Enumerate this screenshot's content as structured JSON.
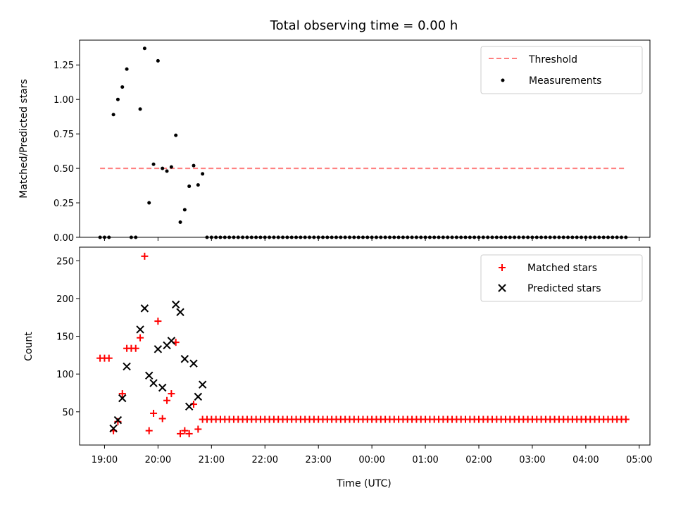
{
  "chart_data": [
    {
      "type": "scatter",
      "title": "Total observing time = 0.00 h",
      "ylabel": "Matched/Predicted stars",
      "xlabel": "",
      "xlim": [
        "18:32",
        "05:12"
      ],
      "ylim": [
        0,
        1.43
      ],
      "yticks": [
        "0.00",
        "0.25",
        "0.50",
        "0.75",
        "1.00",
        "1.25"
      ],
      "threshold": {
        "name": "Threshold",
        "value": 0.5,
        "x_start": "18:55",
        "x_end": "04:45",
        "color": "#ff7f7f"
      },
      "series": [
        {
          "name": "Measurements",
          "color": "#000000",
          "marker": "dot",
          "points": [
            [
              "18:55",
              0
            ],
            [
              "19:00",
              0
            ],
            [
              "19:05",
              0
            ],
            [
              "19:10",
              0.89
            ],
            [
              "19:15",
              1.0
            ],
            [
              "19:20",
              1.09
            ],
            [
              "19:25",
              1.22
            ],
            [
              "19:30",
              0
            ],
            [
              "19:35",
              0
            ],
            [
              "19:40",
              0.93
            ],
            [
              "19:45",
              1.37
            ],
            [
              "19:50",
              0.25
            ],
            [
              "19:55",
              0.53
            ],
            [
              "20:00",
              1.28
            ],
            [
              "20:05",
              0.5
            ],
            [
              "20:10",
              0.48
            ],
            [
              "20:15",
              0.51
            ],
            [
              "20:20",
              0.74
            ],
            [
              "20:25",
              0.11
            ],
            [
              "20:30",
              0.2
            ],
            [
              "20:35",
              0.37
            ],
            [
              "20:40",
              0.52
            ],
            [
              "20:45",
              0.38
            ],
            [
              "20:50",
              0.46
            ]
          ],
          "zero_from": "20:55",
          "zero_to": "04:45",
          "zero_step_minutes": 5
        }
      ],
      "legend": {
        "position": "top-right",
        "entries": [
          "Threshold",
          "Measurements"
        ]
      }
    },
    {
      "type": "scatter",
      "title": "",
      "ylabel": "Count",
      "xlabel": "Time (UTC)",
      "xlim": [
        "18:32",
        "05:12"
      ],
      "ylim": [
        6,
        268
      ],
      "yticks": [
        "50",
        "100",
        "150",
        "200",
        "250"
      ],
      "xticks": [
        "19:00",
        "20:00",
        "21:00",
        "22:00",
        "23:00",
        "00:00",
        "01:00",
        "02:00",
        "03:00",
        "04:00",
        "05:00"
      ],
      "series": [
        {
          "name": "Matched stars",
          "color": "#ff0000",
          "marker": "plus",
          "points": [
            [
              "18:55",
              121
            ],
            [
              "19:00",
              121
            ],
            [
              "19:05",
              121
            ],
            [
              "19:10",
              25
            ],
            [
              "19:15",
              37
            ],
            [
              "19:20",
              74
            ],
            [
              "19:25",
              134
            ],
            [
              "19:30",
              134
            ],
            [
              "19:35",
              134
            ],
            [
              "19:40",
              148
            ],
            [
              "19:45",
              256
            ],
            [
              "19:50",
              25
            ],
            [
              "19:55",
              48
            ],
            [
              "20:00",
              170
            ],
            [
              "20:05",
              41
            ],
            [
              "20:10",
              65
            ],
            [
              "20:15",
              74
            ],
            [
              "20:20",
              142
            ],
            [
              "20:25",
              21
            ],
            [
              "20:30",
              25
            ],
            [
              "20:35",
              21
            ],
            [
              "20:40",
              60
            ],
            [
              "20:45",
              27
            ]
          ],
          "constant_from": "20:50",
          "constant_to": "04:45",
          "constant_value": 40,
          "constant_step_minutes": 5
        },
        {
          "name": "Predicted stars",
          "color": "#000000",
          "marker": "x",
          "points": [
            [
              "19:10",
              28
            ],
            [
              "19:15",
              39
            ],
            [
              "19:20",
              68
            ],
            [
              "19:25",
              110
            ],
            [
              "19:40",
              159
            ],
            [
              "19:45",
              187
            ],
            [
              "19:50",
              98
            ],
            [
              "19:55",
              88
            ],
            [
              "20:00",
              133
            ],
            [
              "20:05",
              82
            ],
            [
              "20:10",
              138
            ],
            [
              "20:15",
              144
            ],
            [
              "20:20",
              192
            ],
            [
              "20:25",
              182
            ],
            [
              "20:30",
              120
            ],
            [
              "20:35",
              57
            ],
            [
              "20:40",
              114
            ],
            [
              "20:45",
              70
            ],
            [
              "20:50",
              86
            ]
          ]
        }
      ],
      "legend": {
        "position": "top-right",
        "entries": [
          "Matched stars",
          "Predicted stars"
        ]
      }
    }
  ]
}
